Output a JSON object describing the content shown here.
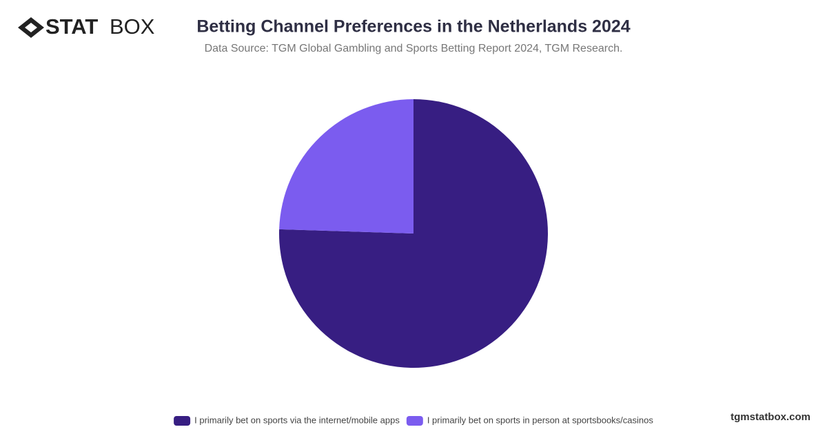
{
  "chart_data": {
    "type": "pie",
    "title": "Betting Channel Preferences in the Netherlands 2024",
    "subtitle": "Data Source: TGM Global Gambling and Sports Betting Report 2024, TGM Research.",
    "categories": [
      "I primarily bet on sports via the internet/mobile apps",
      "I primarily bet on sports in person at sportsbooks/casinos"
    ],
    "values": [
      75.5,
      24.5
    ],
    "colors": [
      "#371e82",
      "#7b5cef"
    ],
    "legend": "bottom"
  },
  "branding": {
    "logo_bold": "STAT",
    "logo_light": "BOX",
    "website": "tgmstatbox.com"
  }
}
